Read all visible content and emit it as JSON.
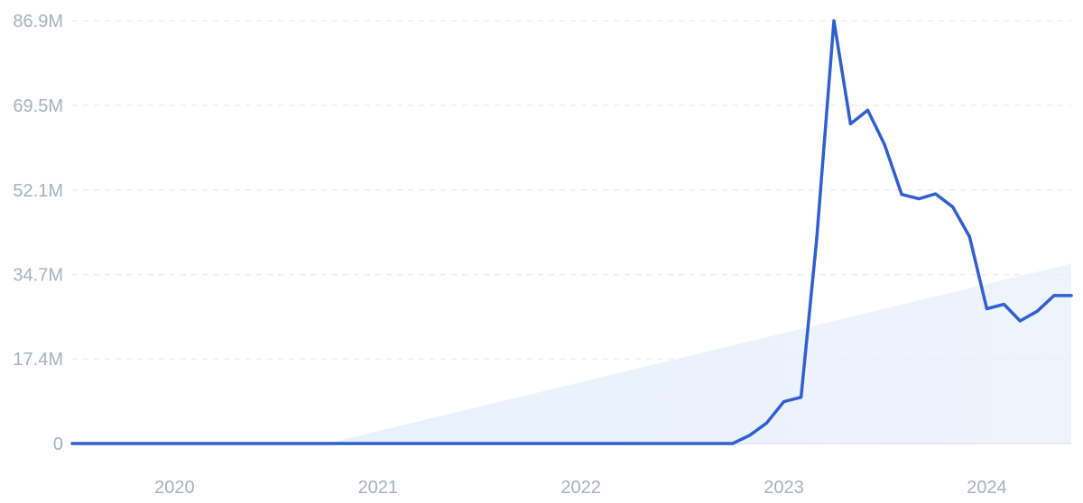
{
  "chart_data": {
    "type": "line",
    "title": "",
    "xlabel": "",
    "ylabel": "",
    "y_tick_labels": [
      "0",
      "17.4M",
      "34.7M",
      "52.1M",
      "69.5M",
      "86.9M"
    ],
    "y_tick_values": [
      0,
      17400000,
      34700000,
      52100000,
      69500000,
      86900000
    ],
    "ylim": [
      0,
      86900000
    ],
    "x_tick_labels": [
      "2020",
      "2021",
      "2022",
      "2023",
      "2024"
    ],
    "x_tick_dates": [
      "2020-01-01",
      "2021-01-01",
      "2022-01-01",
      "2023-01-01",
      "2024-01-01"
    ],
    "xlim": [
      "2019-07-01",
      "2024-06-01"
    ],
    "grid": "horizontal-dashed",
    "series": [
      {
        "x": [
          "2019-07-01",
          "2022-10-01",
          "2022-11-01",
          "2022-12-01",
          "2023-01-01",
          "2023-02-01",
          "2023-03-01",
          "2023-04-01",
          "2023-05-01",
          "2023-06-01",
          "2023-07-01",
          "2023-08-01",
          "2023-09-01",
          "2023-10-01",
          "2023-11-01",
          "2023-12-01",
          "2024-01-01",
          "2024-02-01",
          "2024-03-01",
          "2024-04-01",
          "2024-05-01",
          "2024-06-01"
        ],
        "values": [
          0,
          0,
          1700000,
          4200000,
          8600000,
          9500000,
          42000000,
          86900000,
          65700000,
          68500000,
          61500000,
          51200000,
          50300000,
          51300000,
          48600000,
          42500000,
          27700000,
          28600000,
          25200000,
          27200000,
          30400000,
          30400000
        ]
      }
    ],
    "trend": {
      "x": [
        "2020-10-01",
        "2024-06-01"
      ],
      "values": [
        0,
        37000000
      ]
    },
    "colors": {
      "line": "#2f5fd0",
      "trend_fill": "#e6effb",
      "grid": "#e1e4e8",
      "axis": "#d8dde3",
      "tick_text": "#a9b0bb"
    }
  }
}
